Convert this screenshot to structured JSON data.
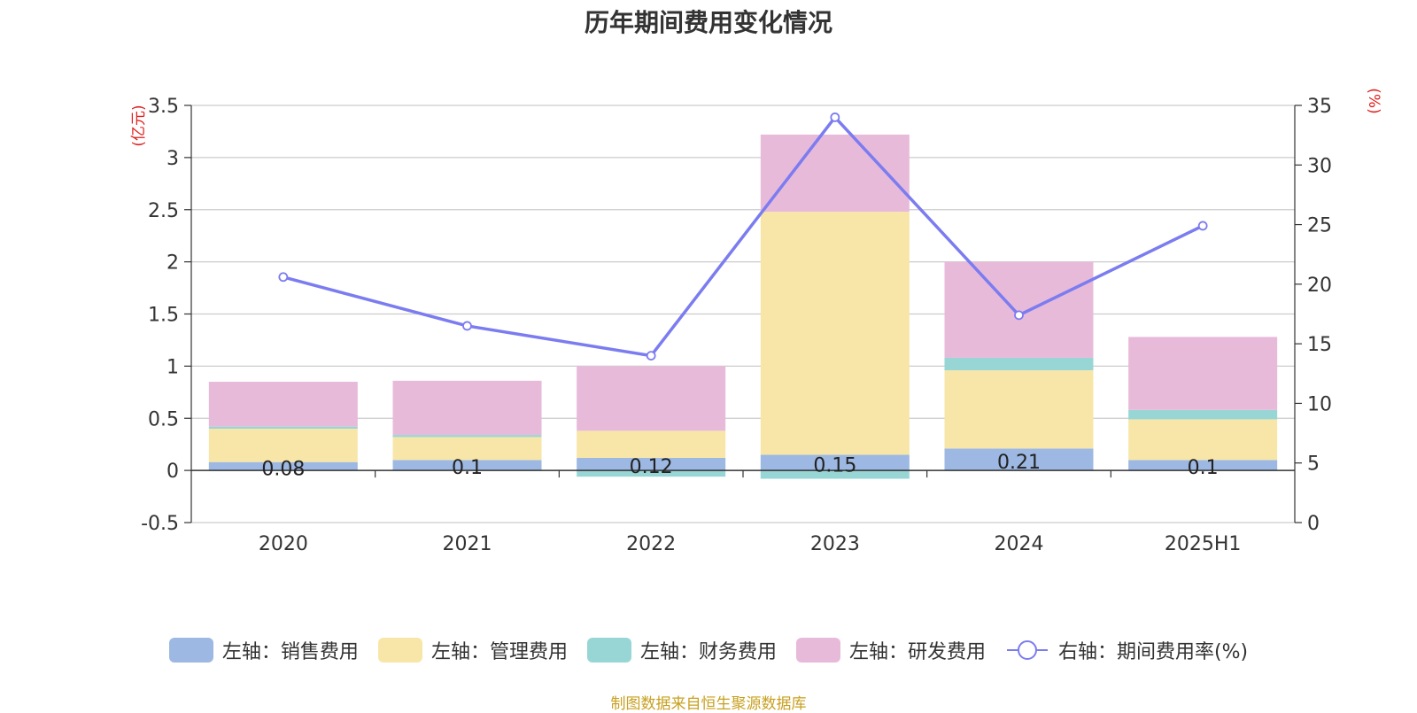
{
  "chart_data": {
    "type": "bar",
    "title": "历年期间费用变化情况",
    "categories": [
      "2020",
      "2021",
      "2022",
      "2023",
      "2024",
      "2025H1"
    ],
    "y_left": {
      "unit": "(亿元)",
      "ylim": [
        -0.5,
        3.5
      ],
      "ticks": [
        -0.5,
        0,
        0.5,
        1,
        1.5,
        2,
        2.5,
        3,
        3.5
      ]
    },
    "y_right": {
      "unit": "(%)",
      "ylim": [
        0,
        35
      ],
      "ticks": [
        0,
        5,
        10,
        15,
        20,
        25,
        30,
        35
      ]
    },
    "stacked": true,
    "grid": true,
    "legend_position": "bottom",
    "series": [
      {
        "name": "左轴：销售费用",
        "axis": "left",
        "color": "#9db8e2",
        "values": [
          0.08,
          0.1,
          0.12,
          0.15,
          0.21,
          0.1
        ],
        "labels": [
          "0.08",
          "0.1",
          "0.12",
          "0.15",
          "0.21",
          "0.1"
        ]
      },
      {
        "name": "左轴：管理费用",
        "axis": "left",
        "color": "#f8e6a8",
        "values": [
          0.32,
          0.22,
          0.26,
          2.33,
          0.75,
          0.39
        ]
      },
      {
        "name": "左轴：财务费用",
        "axis": "left",
        "color": "#98d6d6",
        "values": [
          0.02,
          0.02,
          -0.06,
          -0.08,
          0.12,
          0.09
        ]
      },
      {
        "name": "左轴：研发费用",
        "axis": "left",
        "color": "#e8bada",
        "values": [
          0.43,
          0.52,
          0.62,
          0.74,
          0.92,
          0.7
        ]
      },
      {
        "name": "右轴：期间费用率(%)",
        "axis": "right",
        "type": "line",
        "color": "#7b7cf0",
        "values": [
          20.6,
          16.5,
          14.0,
          34.0,
          17.4,
          24.9
        ]
      }
    ]
  },
  "source": "制图数据来自恒生聚源数据库"
}
